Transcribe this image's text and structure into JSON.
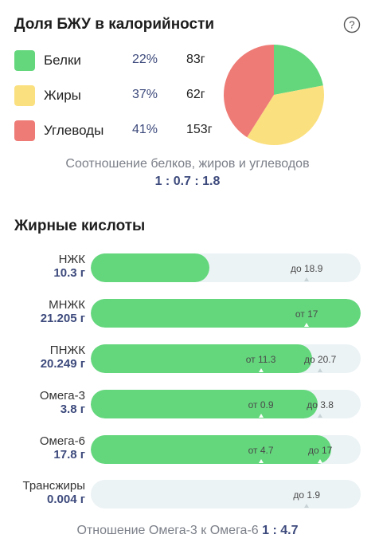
{
  "macros": {
    "title": "Доля БЖУ в калорийности",
    "help_icon": "question-circle-icon",
    "items": [
      {
        "label": "Белки",
        "percent": "22%",
        "grams": "83г",
        "color": "#64d77d",
        "share": 22
      },
      {
        "label": "Жиры",
        "percent": "37%",
        "grams": "62г",
        "color": "#fbe07f",
        "share": 37
      },
      {
        "label": "Углеводы",
        "percent": "41%",
        "grams": "153г",
        "color": "#ee7b76",
        "share": 41
      }
    ],
    "ratio_caption": "Соотношение белков, жиров и углеводов",
    "ratio_value": "1 : 0.7 : 1.8"
  },
  "fatty_acids": {
    "title": "Жирные кислоты",
    "items": [
      {
        "name": "НЖК",
        "amount": "10.3 г",
        "fill_pct": 44,
        "markers": [
          {
            "text": "до 18.9",
            "pos_pct": 80
          }
        ]
      },
      {
        "name": "МНЖК",
        "amount": "21.205 г",
        "fill_pct": 100,
        "markers": [
          {
            "text": "от 17",
            "pos_pct": 80
          }
        ]
      },
      {
        "name": "ПНЖК",
        "amount": "20.249 г",
        "fill_pct": 82,
        "markers": [
          {
            "text": "от 11.3",
            "pos_pct": 63
          },
          {
            "text": "до 20.7",
            "pos_pct": 85
          }
        ]
      },
      {
        "name": "Омега-3",
        "amount": "3.8 г",
        "fill_pct": 84,
        "markers": [
          {
            "text": "от 0.9",
            "pos_pct": 63
          },
          {
            "text": "до 3.8",
            "pos_pct": 85
          }
        ]
      },
      {
        "name": "Омега-6",
        "amount": "17.8 г",
        "fill_pct": 89,
        "markers": [
          {
            "text": "от 4.7",
            "pos_pct": 63
          },
          {
            "text": "до 17",
            "pos_pct": 85
          }
        ]
      },
      {
        "name": "Трансжиры",
        "amount": "0.004 г",
        "fill_pct": 0,
        "markers": [
          {
            "text": "до 1.9",
            "pos_pct": 80
          }
        ]
      }
    ]
  },
  "omega_ratio": {
    "label": "Отношение Омега-3 к Омега-6",
    "value": "1 : 4.7"
  }
}
